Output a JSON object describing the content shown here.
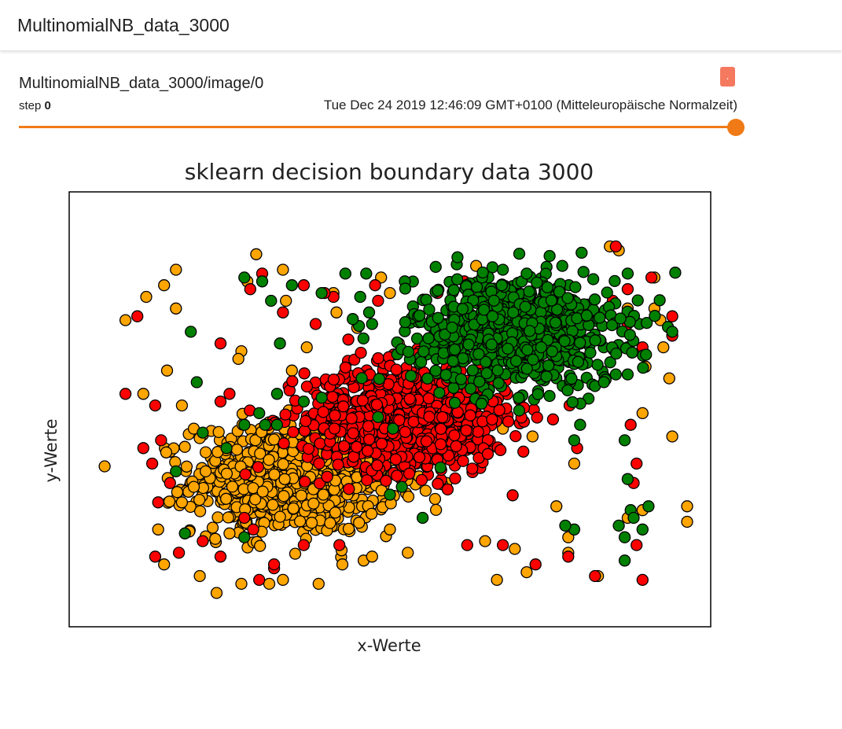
{
  "header": {
    "title": "MultinomialNB_data_3000"
  },
  "card": {
    "title": "MultinomialNB_data_3000/image/0",
    "step_label": "step",
    "step_value": "0",
    "timestamp": "Tue Dec 24 2019 12:46:09 GMT+0100 (Mitteleuropäische Normalzeit)",
    "menu_label": "."
  },
  "slider": {
    "step": 0,
    "max_step": 0
  },
  "colors": {
    "accent": "#f07a16",
    "menu_button": "#f4795f",
    "class_orange": "#ffa500",
    "class_red": "#ff0000",
    "class_green": "#008000"
  },
  "chart_data": {
    "type": "scatter",
    "title": "sklearn decision boundary data 3000",
    "xlabel": "x-Werte",
    "ylabel": "y-Werte",
    "xlim": [
      0,
      10
    ],
    "ylim": [
      0,
      10
    ],
    "grid": false,
    "ticks": false,
    "legend": "none",
    "total_points": 3000,
    "series": [
      {
        "color": "#ffa500",
        "cluster_center": [
          3.4,
          3.2
        ],
        "cluster_count": 850,
        "scattered": [
          [
            0.55,
            7.3
          ],
          [
            0.9,
            7.9
          ],
          [
            1.2,
            8.2
          ],
          [
            1.4,
            8.6
          ],
          [
            1.4,
            7.6
          ],
          [
            1.25,
            6.0
          ],
          [
            1.5,
            5.1
          ],
          [
            0.85,
            5.4
          ],
          [
            1.7,
            4.5
          ],
          [
            1.9,
            3.4
          ],
          [
            1.5,
            2.6
          ],
          [
            1.1,
            1.9
          ],
          [
            1.2,
            1.0
          ],
          [
            1.8,
            0.7
          ],
          [
            2.3,
            1.8
          ],
          [
            2.45,
            6.3
          ],
          [
            2.5,
            6.5
          ],
          [
            2.6,
            8.3
          ],
          [
            2.75,
            9.0
          ],
          [
            3.2,
            8.6
          ],
          [
            3.25,
            7.8
          ],
          [
            3.35,
            6.0
          ],
          [
            3.6,
            6.6
          ],
          [
            3.7,
            5.6
          ],
          [
            4.05,
            8.0
          ],
          [
            4.1,
            7.5
          ],
          [
            4.45,
            7.1
          ],
          [
            4.85,
            8.4
          ],
          [
            5.0,
            8.0
          ],
          [
            5.15,
            6.7
          ],
          [
            5.2,
            4.6
          ],
          [
            5.45,
            3.6
          ],
          [
            5.6,
            2.9
          ],
          [
            5.3,
            1.3
          ],
          [
            5.0,
            1.9
          ],
          [
            4.7,
            1.2
          ],
          [
            4.2,
            1.0
          ],
          [
            3.8,
            0.5
          ],
          [
            3.2,
            0.6
          ],
          [
            2.5,
            0.5
          ],
          [
            6.45,
            8.7
          ],
          [
            6.6,
            1.6
          ],
          [
            6.8,
            0.6
          ],
          [
            7.1,
            1.4
          ],
          [
            7.3,
            0.8
          ],
          [
            7.8,
            2.5
          ],
          [
            8.0,
            1.7
          ],
          [
            8.0,
            1.3
          ],
          [
            8.5,
            0.7
          ],
          [
            9.0,
            2.2
          ],
          [
            9.25,
            2.4
          ],
          [
            9.25,
            4.9
          ],
          [
            9.3,
            6.1
          ],
          [
            9.45,
            7.6
          ],
          [
            9.45,
            8.4
          ],
          [
            9.55,
            7.3
          ],
          [
            9.6,
            6.6
          ],
          [
            9.7,
            5.8
          ],
          [
            9.75,
            4.3
          ],
          [
            10.0,
            2.1
          ],
          [
            10.0,
            2.5
          ],
          [
            8.7,
            9.2
          ],
          [
            8.85,
            9.1
          ],
          [
            9.0,
            7.6
          ],
          [
            8.1,
            3.6
          ],
          [
            7.4,
            4.3
          ],
          [
            6.9,
            4.5
          ],
          [
            1.7,
            3.0
          ],
          [
            2.1,
            3.9
          ]
        ]
      },
      {
        "color": "#ff0000",
        "cluster_center": [
          5.3,
          4.8
        ],
        "cluster_count": 850,
        "scattered": [
          [
            0.75,
            7.4
          ],
          [
            0.55,
            5.4
          ],
          [
            1.05,
            5.1
          ],
          [
            1.15,
            4.2
          ],
          [
            0.85,
            4.0
          ],
          [
            1.0,
            3.6
          ],
          [
            1.3,
            3.1
          ],
          [
            1.1,
            2.6
          ],
          [
            1.05,
            1.2
          ],
          [
            1.45,
            1.3
          ],
          [
            1.85,
            1.6
          ],
          [
            2.15,
            1.2
          ],
          [
            2.55,
            2.2
          ],
          [
            2.7,
            1.9
          ],
          [
            2.8,
            0.6
          ],
          [
            3.05,
            0.9
          ],
          [
            2.15,
            5.2
          ],
          [
            2.15,
            6.7
          ],
          [
            2.65,
            8.1
          ],
          [
            2.85,
            8.5
          ],
          [
            3.2,
            7.5
          ],
          [
            3.55,
            8.2
          ],
          [
            3.9,
            8.0
          ],
          [
            4.05,
            7.9
          ],
          [
            3.75,
            7.2
          ],
          [
            4.75,
            8.2
          ],
          [
            4.8,
            7.8
          ],
          [
            4.3,
            6.8
          ],
          [
            5.8,
            8.0
          ],
          [
            6.25,
            8.3
          ],
          [
            6.0,
            7.6
          ],
          [
            6.3,
            1.5
          ],
          [
            6.9,
            1.5
          ],
          [
            7.45,
            1.0
          ],
          [
            8.0,
            1.2
          ],
          [
            8.15,
            4.0
          ],
          [
            8.45,
            0.7
          ],
          [
            8.75,
            7.8
          ],
          [
            8.8,
            9.2
          ],
          [
            9.0,
            8.1
          ],
          [
            9.0,
            7.2
          ],
          [
            9.0,
            6.6
          ],
          [
            9.05,
            4.6
          ],
          [
            9.15,
            3.6
          ],
          [
            9.4,
            8.4
          ],
          [
            9.25,
            6.6
          ],
          [
            9.1,
            3.1
          ],
          [
            9.15,
            1.5
          ],
          [
            9.25,
            0.6
          ],
          [
            9.75,
            7.4
          ],
          [
            9.75,
            6.9
          ],
          [
            4.15,
            1.5
          ],
          [
            3.55,
            1.5
          ],
          [
            3.05,
            1.0
          ],
          [
            2.3,
            5.4
          ]
        ]
      },
      {
        "color": "#008000",
        "cluster_center": [
          7.1,
          7.0
        ],
        "cluster_count": 850,
        "scattered": [
          [
            1.65,
            7.0
          ],
          [
            1.85,
            4.4
          ],
          [
            2.25,
            4.0
          ],
          [
            2.55,
            4.6
          ],
          [
            2.9,
            4.6
          ],
          [
            3.1,
            4.6
          ],
          [
            2.8,
            4.9
          ],
          [
            2.55,
            8.4
          ],
          [
            2.85,
            8.3
          ],
          [
            3.0,
            7.8
          ],
          [
            3.35,
            8.2
          ],
          [
            3.85,
            8.0
          ],
          [
            4.25,
            8.5
          ],
          [
            4.6,
            8.5
          ],
          [
            4.5,
            7.9
          ],
          [
            4.65,
            7.5
          ],
          [
            4.7,
            7.2
          ],
          [
            5.25,
            8.3
          ],
          [
            3.1,
            5.4
          ],
          [
            3.15,
            6.7
          ],
          [
            3.55,
            5.2
          ],
          [
            3.85,
            5.3
          ],
          [
            4.8,
            4.8
          ],
          [
            5.05,
            4.5
          ],
          [
            5.0,
            2.8
          ],
          [
            5.2,
            3.0
          ],
          [
            5.55,
            2.2
          ],
          [
            5.85,
            3.5
          ],
          [
            6.55,
            8.4
          ],
          [
            6.9,
            8.6
          ],
          [
            7.3,
            8.5
          ],
          [
            7.9,
            8.7
          ],
          [
            8.1,
            4.2
          ],
          [
            8.2,
            4.6
          ],
          [
            8.45,
            5.6
          ],
          [
            8.6,
            5.7
          ],
          [
            8.8,
            5.9
          ],
          [
            8.95,
            4.2
          ],
          [
            9.0,
            5.9
          ],
          [
            9.0,
            3.2
          ],
          [
            9.05,
            2.4
          ],
          [
            8.85,
            2.0
          ],
          [
            7.95,
            2.0
          ],
          [
            8.1,
            1.9
          ],
          [
            9.1,
            2.2
          ],
          [
            9.25,
            1.9
          ],
          [
            9.35,
            2.5
          ],
          [
            8.95,
            1.7
          ],
          [
            8.95,
            1.1
          ],
          [
            9.75,
            7.0
          ],
          [
            9.0,
            8.5
          ],
          [
            1.4,
            3.4
          ],
          [
            1.55,
            1.8
          ],
          [
            2.55,
            1.7
          ],
          [
            1.75,
            5.7
          ]
        ]
      }
    ]
  }
}
